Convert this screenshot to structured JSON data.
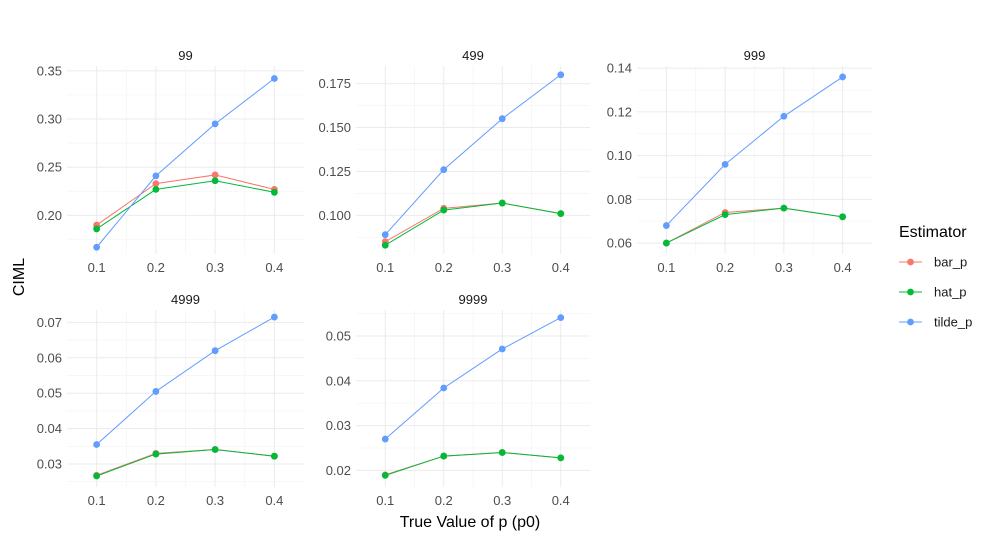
{
  "chart_data": {
    "type": "line",
    "layout": "facet_wrap",
    "xlabel": "True Value of p (p0)",
    "ylabel": "CIML",
    "legend": {
      "title": "Estimator",
      "position": "right",
      "entries": [
        "bar_p",
        "hat_p",
        "tilde_p"
      ]
    },
    "colors": {
      "bar_p": "#F8766D",
      "hat_p": "#00BA38",
      "tilde_p": "#619CFF"
    },
    "x_ticks": [
      "0.1",
      "0.2",
      "0.3",
      "0.4"
    ],
    "x": [
      0.1,
      0.2,
      0.3,
      0.4
    ],
    "xlim": [
      0.05,
      0.45
    ],
    "panels": [
      {
        "title": "99",
        "ylim": [
          0.16,
          0.355
        ],
        "y_ticks": [
          0.2,
          0.25,
          0.3,
          0.35
        ],
        "y_tick_labels": [
          "0.20",
          "0.25",
          "0.30",
          "0.35"
        ],
        "series": [
          {
            "name": "bar_p",
            "values": [
              0.19,
              0.233,
              0.242,
              0.227
            ]
          },
          {
            "name": "hat_p",
            "values": [
              0.186,
              0.227,
              0.236,
              0.224
            ]
          },
          {
            "name": "tilde_p",
            "values": [
              0.167,
              0.241,
              0.295,
              0.342
            ]
          }
        ]
      },
      {
        "title": "499",
        "ylim": [
          0.078,
          0.185
        ],
        "y_ticks": [
          0.1,
          0.125,
          0.15,
          0.175
        ],
        "y_tick_labels": [
          "0.100",
          "0.125",
          "0.150",
          "0.175"
        ],
        "series": [
          {
            "name": "bar_p",
            "values": [
              0.085,
              0.104,
              0.107,
              0.101
            ]
          },
          {
            "name": "hat_p",
            "values": [
              0.083,
              0.103,
              0.107,
              0.101
            ]
          },
          {
            "name": "tilde_p",
            "values": [
              0.089,
              0.126,
              0.155,
              0.18
            ]
          }
        ]
      },
      {
        "title": "999",
        "ylim": [
          0.055,
          0.141
        ],
        "y_ticks": [
          0.06,
          0.08,
          0.1,
          0.12,
          0.14
        ],
        "y_tick_labels": [
          "0.06",
          "0.08",
          "0.10",
          "0.12",
          "0.14"
        ],
        "series": [
          {
            "name": "bar_p",
            "values": [
              0.06,
              0.074,
              0.076,
              0.072
            ]
          },
          {
            "name": "hat_p",
            "values": [
              0.06,
              0.073,
              0.076,
              0.072
            ]
          },
          {
            "name": "tilde_p",
            "values": [
              0.068,
              0.096,
              0.118,
              0.136
            ]
          }
        ]
      },
      {
        "title": "4999",
        "ylim": [
          0.0235,
          0.0735
        ],
        "y_ticks": [
          0.03,
          0.04,
          0.05,
          0.06,
          0.07
        ],
        "y_tick_labels": [
          "0.03",
          "0.04",
          "0.05",
          "0.06",
          "0.07"
        ],
        "series": [
          {
            "name": "bar_p",
            "values": [
              0.0268,
              0.033,
              0.0341,
              0.0322
            ]
          },
          {
            "name": "hat_p",
            "values": [
              0.0266,
              0.0328,
              0.0341,
              0.0322
            ]
          },
          {
            "name": "tilde_p",
            "values": [
              0.0355,
              0.0505,
              0.062,
              0.0715
            ]
          }
        ]
      },
      {
        "title": "9999",
        "ylim": [
          0.0163,
          0.0558
        ],
        "y_ticks": [
          0.02,
          0.03,
          0.04,
          0.05
        ],
        "y_tick_labels": [
          "0.02",
          "0.03",
          "0.04",
          "0.05"
        ],
        "series": [
          {
            "name": "bar_p",
            "values": [
              0.019,
              0.0232,
              0.024,
              0.0228
            ]
          },
          {
            "name": "hat_p",
            "values": [
              0.0189,
              0.0232,
              0.024,
              0.0228
            ]
          },
          {
            "name": "tilde_p",
            "values": [
              0.027,
              0.0384,
              0.0471,
              0.0541
            ]
          }
        ]
      }
    ]
  }
}
